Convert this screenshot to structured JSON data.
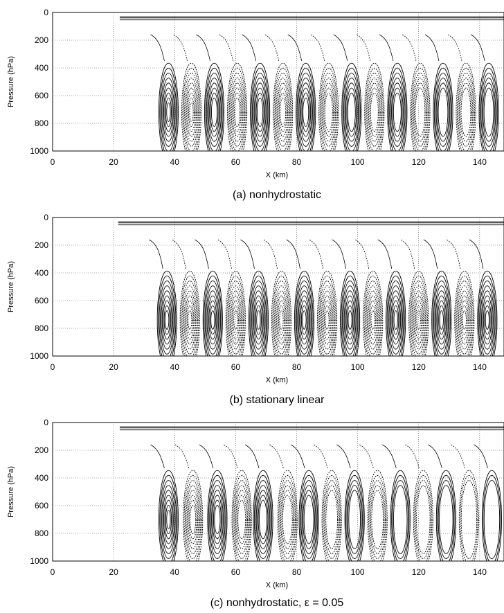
{
  "figure": {
    "panels": [
      {
        "caption": "(a) nonhydrostatic",
        "ylabel": "Pressure (hPa)",
        "xlabel": "X (km)"
      },
      {
        "caption": "(b) stationary linear",
        "ylabel": "Pressure (hPa)",
        "xlabel": "X (km)"
      },
      {
        "caption": "(c) nonhydrostatic, ε = 0.05",
        "ylabel": "Pressure  (hPa)",
        "xlabel": "X (km)"
      }
    ]
  },
  "chart_data": [
    {
      "type": "contour",
      "title": "(a) nonhydrostatic",
      "xlabel": "X (km)",
      "ylabel": "Pressure (hPa)",
      "xlim": [
        0,
        148
      ],
      "ylim": [
        1000,
        0
      ],
      "x_ticks": [
        "0",
        "20",
        "40",
        "60",
        "80",
        "100",
        "120",
        "140"
      ],
      "y_ticks": [
        "0",
        "200",
        "400",
        "600",
        "800",
        "1000"
      ],
      "grid": true,
      "line_styles": {
        "positive": "solid",
        "negative": "dashed"
      },
      "wave_centers_x": [
        38,
        45.5,
        53,
        60.5,
        68,
        75.5,
        83,
        90.5,
        98,
        105.5,
        113,
        120.5,
        128,
        135.5,
        143
      ],
      "wave_center_pressure": 720,
      "contour_levels_per_cell": 9,
      "decay": 0.03
    },
    {
      "type": "contour",
      "title": "(b) stationary linear",
      "xlabel": "X (km)",
      "ylabel": "Pressure (hPa)",
      "xlim": [
        0,
        148
      ],
      "ylim": [
        1000,
        0
      ],
      "x_ticks": [
        "0",
        "20",
        "40",
        "60",
        "80",
        "100",
        "120",
        "140"
      ],
      "y_ticks": [
        "0",
        "200",
        "400",
        "600",
        "800",
        "1000"
      ],
      "grid": true,
      "line_styles": {
        "positive": "solid",
        "negative": "dashed"
      },
      "wave_centers_x": [
        37.5,
        45,
        52.5,
        60,
        67.5,
        75,
        82.5,
        90,
        97.5,
        105,
        112.5,
        120,
        127.5,
        135,
        142.5
      ],
      "wave_center_pressure": 740,
      "contour_levels_per_cell": 9,
      "decay": 0.0
    },
    {
      "type": "contour",
      "title": "(c) nonhydrostatic, ε = 0.05",
      "xlabel": "X (km)",
      "ylabel": "Pressure  (hPa)",
      "xlim": [
        0,
        148
      ],
      "ylim": [
        1000,
        0
      ],
      "x_ticks": [
        "0",
        "20",
        "40",
        "60",
        "80",
        "100",
        "120",
        "140"
      ],
      "y_ticks": [
        "0",
        "200",
        "400",
        "600",
        "800",
        "1000"
      ],
      "grid": true,
      "line_styles": {
        "positive": "solid",
        "negative": "dashed"
      },
      "wave_centers_x": [
        38,
        46,
        54,
        62,
        69,
        77,
        84,
        91.5,
        99,
        106.5,
        114,
        121.5,
        129,
        136.5,
        144
      ],
      "wave_center_pressure": 700,
      "contour_levels_per_cell": 9,
      "decay": 0.075
    }
  ]
}
